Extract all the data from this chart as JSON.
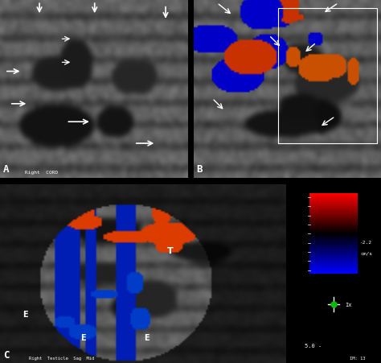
{
  "bg_color": "#000000",
  "fig_bg": "#000000",
  "panel_A_label": "A",
  "panel_B_label": "B",
  "panel_C_label": "C",
  "panel_A_text": "Right  CORD",
  "panel_C_text": "Right  Testicle  Sag  Mid",
  "colorbar_top_text": "-2.2",
  "colorbar_bot_text": "cm/s",
  "colorbar_bot2_text": "5.0 -",
  "colorbar_marker": "Ix",
  "im_text": "IM: 13",
  "label_T": "T",
  "label_E1": "E",
  "label_E2": "E",
  "label_E3": "E",
  "seed_A": 42,
  "seed_B": 7,
  "seed_C": 99
}
